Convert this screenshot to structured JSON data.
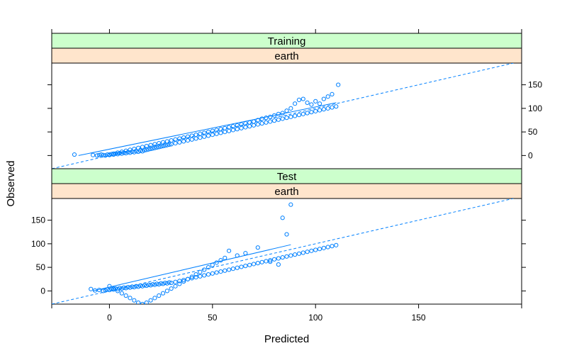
{
  "chart_data": {
    "type": "scatter",
    "xlabel": "Predicted",
    "ylabel": "Observed",
    "xlim": [
      -28,
      200
    ],
    "ylim": [
      -28,
      196
    ],
    "x_ticks": [
      0,
      50,
      100,
      150
    ],
    "y_ticks": [
      0,
      50,
      100,
      150
    ],
    "reference_line": "identity (y = x), dashed",
    "colors": {
      "points": "#0080ff",
      "strip_top": "#ccffcc",
      "strip_bottom": "#ffe5cc"
    },
    "panels": [
      {
        "strips": [
          "Training",
          "earth"
        ],
        "fit_line": [
          [
            -15,
            0
          ],
          [
            110,
            112
          ]
        ],
        "points": [
          [
            -17,
            2
          ],
          [
            -8,
            1
          ],
          [
            -6,
            0
          ],
          [
            -5,
            1
          ],
          [
            -4,
            2
          ],
          [
            -3,
            1
          ],
          [
            -2,
            0
          ],
          [
            -1,
            2
          ],
          [
            0,
            1
          ],
          [
            1,
            3
          ],
          [
            2,
            2
          ],
          [
            3,
            4
          ],
          [
            4,
            3
          ],
          [
            5,
            5
          ],
          [
            6,
            4
          ],
          [
            7,
            6
          ],
          [
            8,
            5
          ],
          [
            9,
            7
          ],
          [
            10,
            6
          ],
          [
            11,
            8
          ],
          [
            12,
            7
          ],
          [
            13,
            9
          ],
          [
            14,
            8
          ],
          [
            15,
            10
          ],
          [
            16,
            9
          ],
          [
            17,
            11
          ],
          [
            18,
            12
          ],
          [
            19,
            13
          ],
          [
            20,
            14
          ],
          [
            21,
            15
          ],
          [
            22,
            16
          ],
          [
            23,
            17
          ],
          [
            24,
            18
          ],
          [
            25,
            19
          ],
          [
            26,
            20
          ],
          [
            27,
            21
          ],
          [
            28,
            22
          ],
          [
            29,
            23
          ],
          [
            30,
            24
          ],
          [
            32,
            26
          ],
          [
            34,
            28
          ],
          [
            36,
            30
          ],
          [
            38,
            32
          ],
          [
            40,
            34
          ],
          [
            42,
            36
          ],
          [
            44,
            38
          ],
          [
            46,
            40
          ],
          [
            48,
            42
          ],
          [
            50,
            44
          ],
          [
            52,
            46
          ],
          [
            54,
            48
          ],
          [
            56,
            50
          ],
          [
            58,
            52
          ],
          [
            60,
            54
          ],
          [
            62,
            56
          ],
          [
            64,
            58
          ],
          [
            66,
            60
          ],
          [
            68,
            62
          ],
          [
            70,
            64
          ],
          [
            72,
            66
          ],
          [
            74,
            68
          ],
          [
            76,
            70
          ],
          [
            78,
            72
          ],
          [
            80,
            74
          ],
          [
            82,
            76
          ],
          [
            84,
            78
          ],
          [
            86,
            80
          ],
          [
            88,
            82
          ],
          [
            90,
            84
          ],
          [
            92,
            86
          ],
          [
            94,
            88
          ],
          [
            96,
            90
          ],
          [
            98,
            92
          ],
          [
            100,
            94
          ],
          [
            102,
            96
          ],
          [
            104,
            98
          ],
          [
            106,
            100
          ],
          [
            108,
            102
          ],
          [
            110,
            104
          ],
          [
            111,
            150
          ],
          [
            108,
            130
          ],
          [
            106,
            125
          ],
          [
            104,
            120
          ],
          [
            102,
            110
          ],
          [
            100,
            115
          ],
          [
            98,
            108
          ],
          [
            96,
            112
          ],
          [
            94,
            120
          ],
          [
            92,
            118
          ],
          [
            90,
            110
          ],
          [
            88,
            100
          ],
          [
            86,
            95
          ],
          [
            84,
            90
          ],
          [
            82,
            88
          ],
          [
            80,
            85
          ],
          [
            78,
            82
          ],
          [
            76,
            80
          ],
          [
            74,
            78
          ],
          [
            72,
            75
          ],
          [
            70,
            72
          ],
          [
            68,
            70
          ],
          [
            66,
            68
          ],
          [
            64,
            66
          ],
          [
            62,
            64
          ],
          [
            60,
            62
          ],
          [
            58,
            60
          ],
          [
            56,
            58
          ],
          [
            54,
            56
          ],
          [
            52,
            54
          ],
          [
            50,
            52
          ],
          [
            48,
            50
          ],
          [
            46,
            48
          ],
          [
            44,
            46
          ],
          [
            42,
            44
          ],
          [
            40,
            42
          ],
          [
            38,
            40
          ],
          [
            36,
            38
          ],
          [
            34,
            36
          ],
          [
            32,
            34
          ],
          [
            30,
            32
          ],
          [
            28,
            30
          ],
          [
            26,
            28
          ],
          [
            24,
            26
          ],
          [
            22,
            24
          ],
          [
            20,
            22
          ],
          [
            18,
            20
          ],
          [
            16,
            18
          ],
          [
            14,
            16
          ],
          [
            12,
            14
          ],
          [
            10,
            12
          ],
          [
            8,
            10
          ],
          [
            6,
            8
          ],
          [
            4,
            6
          ],
          [
            2,
            4
          ],
          [
            0,
            2
          ]
        ]
      },
      {
        "strips": [
          "Test",
          "earth"
        ],
        "fit_line": [
          [
            -8,
            0
          ],
          [
            88,
            98
          ]
        ],
        "points": [
          [
            -9,
            4
          ],
          [
            -7,
            1
          ],
          [
            -5,
            2
          ],
          [
            -3,
            0
          ],
          [
            -2,
            1
          ],
          [
            -1,
            3
          ],
          [
            0,
            2
          ],
          [
            1,
            4
          ],
          [
            2,
            3
          ],
          [
            3,
            5
          ],
          [
            4,
            4
          ],
          [
            5,
            6
          ],
          [
            6,
            5
          ],
          [
            7,
            7
          ],
          [
            8,
            6
          ],
          [
            9,
            8
          ],
          [
            10,
            7
          ],
          [
            11,
            9
          ],
          [
            12,
            8
          ],
          [
            13,
            10
          ],
          [
            14,
            9
          ],
          [
            15,
            11
          ],
          [
            16,
            10
          ],
          [
            17,
            12
          ],
          [
            18,
            11
          ],
          [
            19,
            13
          ],
          [
            20,
            12
          ],
          [
            21,
            14
          ],
          [
            22,
            13
          ],
          [
            23,
            15
          ],
          [
            24,
            14
          ],
          [
            25,
            16
          ],
          [
            26,
            15
          ],
          [
            27,
            17
          ],
          [
            28,
            16
          ],
          [
            29,
            18
          ],
          [
            30,
            17
          ],
          [
            32,
            19
          ],
          [
            34,
            21
          ],
          [
            36,
            23
          ],
          [
            38,
            25
          ],
          [
            40,
            27
          ],
          [
            42,
            29
          ],
          [
            44,
            31
          ],
          [
            46,
            33
          ],
          [
            48,
            35
          ],
          [
            50,
            37
          ],
          [
            52,
            39
          ],
          [
            54,
            41
          ],
          [
            56,
            43
          ],
          [
            58,
            45
          ],
          [
            60,
            47
          ],
          [
            62,
            49
          ],
          [
            64,
            51
          ],
          [
            66,
            53
          ],
          [
            68,
            55
          ],
          [
            70,
            57
          ],
          [
            72,
            59
          ],
          [
            74,
            61
          ],
          [
            76,
            63
          ],
          [
            78,
            65
          ],
          [
            80,
            67
          ],
          [
            82,
            69
          ],
          [
            84,
            71
          ],
          [
            86,
            73
          ],
          [
            88,
            75
          ],
          [
            90,
            77
          ],
          [
            92,
            79
          ],
          [
            94,
            81
          ],
          [
            96,
            83
          ],
          [
            98,
            85
          ],
          [
            100,
            87
          ],
          [
            102,
            89
          ],
          [
            104,
            91
          ],
          [
            106,
            93
          ],
          [
            108,
            95
          ],
          [
            110,
            97
          ],
          [
            88,
            183
          ],
          [
            84,
            155
          ],
          [
            86,
            120
          ],
          [
            82,
            56
          ],
          [
            78,
            62
          ],
          [
            72,
            92
          ],
          [
            66,
            80
          ],
          [
            62,
            75
          ],
          [
            58,
            85
          ],
          [
            56,
            70
          ],
          [
            54,
            65
          ],
          [
            52,
            60
          ],
          [
            50,
            55
          ],
          [
            48,
            50
          ],
          [
            46,
            45
          ],
          [
            44,
            40
          ],
          [
            42,
            35
          ],
          [
            40,
            30
          ],
          [
            38,
            25
          ],
          [
            36,
            20
          ],
          [
            34,
            15
          ],
          [
            32,
            10
          ],
          [
            30,
            5
          ],
          [
            28,
            0
          ],
          [
            26,
            -5
          ],
          [
            24,
            -10
          ],
          [
            22,
            -15
          ],
          [
            20,
            -20
          ],
          [
            18,
            -25
          ],
          [
            16,
            -28
          ],
          [
            14,
            -25
          ],
          [
            12,
            -20
          ],
          [
            10,
            -15
          ],
          [
            8,
            -10
          ],
          [
            6,
            -5
          ],
          [
            4,
            0
          ],
          [
            2,
            5
          ],
          [
            0,
            10
          ]
        ]
      }
    ]
  }
}
